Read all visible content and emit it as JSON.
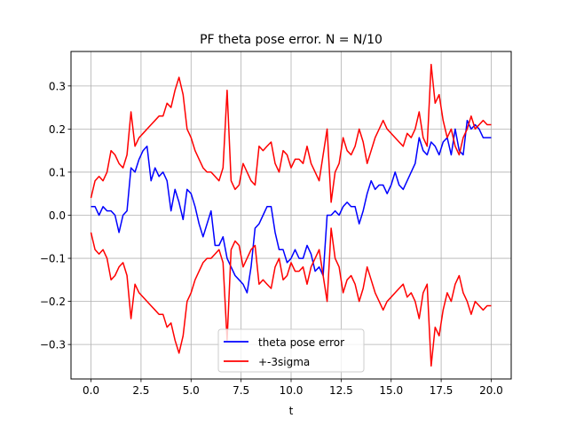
{
  "chart_data": {
    "type": "line",
    "title": "PF theta pose error. N = N/10",
    "xlabel": "t",
    "ylabel": "",
    "xlim": [
      -1.0,
      21.0
    ],
    "ylim": [
      -0.38,
      0.38
    ],
    "xticks": [
      0.0,
      2.5,
      5.0,
      7.5,
      10.0,
      12.5,
      15.0,
      17.5,
      20.0
    ],
    "xtick_labels": [
      "0.0",
      "2.5",
      "5.0",
      "7.5",
      "10.0",
      "12.5",
      "15.0",
      "17.5",
      "20.0"
    ],
    "yticks": [
      -0.3,
      -0.2,
      -0.1,
      0.0,
      0.1,
      0.2,
      0.3
    ],
    "ytick_labels": [
      "−0.3",
      "−0.2",
      "−0.1",
      "0.0",
      "0.1",
      "0.2",
      "0.3"
    ],
    "grid": true,
    "legend_position": "lower center",
    "series": [
      {
        "name": "theta pose error",
        "color": "#0000ff",
        "x": [
          0.0,
          0.2,
          0.4,
          0.6,
          0.8,
          1.0,
          1.2,
          1.4,
          1.6,
          1.8,
          2.0,
          2.2,
          2.4,
          2.6,
          2.8,
          3.0,
          3.2,
          3.4,
          3.6,
          3.8,
          4.0,
          4.2,
          4.4,
          4.6,
          4.8,
          5.0,
          5.2,
          5.4,
          5.6,
          5.8,
          6.0,
          6.2,
          6.4,
          6.6,
          6.8,
          7.0,
          7.2,
          7.4,
          7.6,
          7.8,
          8.0,
          8.2,
          8.4,
          8.6,
          8.8,
          9.0,
          9.2,
          9.4,
          9.6,
          9.8,
          10.0,
          10.2,
          10.4,
          10.6,
          10.8,
          11.0,
          11.2,
          11.4,
          11.6,
          11.8,
          12.0,
          12.2,
          12.4,
          12.6,
          12.8,
          13.0,
          13.2,
          13.4,
          13.6,
          13.8,
          14.0,
          14.2,
          14.4,
          14.6,
          14.8,
          15.0,
          15.2,
          15.4,
          15.6,
          15.8,
          16.0,
          16.2,
          16.4,
          16.6,
          16.8,
          17.0,
          17.2,
          17.4,
          17.6,
          17.8,
          18.0,
          18.2,
          18.4,
          18.6,
          18.8,
          19.0,
          19.2,
          19.4,
          19.6,
          19.8,
          20.0
        ],
        "y": [
          0.02,
          0.02,
          0.0,
          0.02,
          0.01,
          0.01,
          0.0,
          -0.04,
          0.0,
          0.01,
          0.11,
          0.1,
          0.13,
          0.15,
          0.16,
          0.08,
          0.11,
          0.09,
          0.1,
          0.08,
          0.01,
          0.06,
          0.03,
          -0.01,
          0.06,
          0.05,
          0.02,
          -0.02,
          -0.05,
          -0.02,
          0.01,
          -0.07,
          -0.07,
          -0.05,
          -0.1,
          -0.12,
          -0.14,
          -0.15,
          -0.16,
          -0.18,
          -0.12,
          -0.03,
          -0.02,
          0.0,
          0.02,
          0.02,
          -0.04,
          -0.08,
          -0.08,
          -0.11,
          -0.1,
          -0.08,
          -0.1,
          -0.1,
          -0.07,
          -0.09,
          -0.13,
          -0.12,
          -0.14,
          0.0,
          0.0,
          0.01,
          0.0,
          0.02,
          0.03,
          0.02,
          0.02,
          -0.02,
          0.01,
          0.05,
          0.08,
          0.06,
          0.07,
          0.07,
          0.05,
          0.07,
          0.1,
          0.07,
          0.06,
          0.08,
          0.1,
          0.12,
          0.18,
          0.15,
          0.14,
          0.17,
          0.16,
          0.14,
          0.17,
          0.18,
          0.14,
          0.2,
          0.15,
          0.14,
          0.22,
          0.2,
          0.21,
          0.2,
          0.18,
          0.18,
          0.18
        ]
      },
      {
        "name": "+-3sigma",
        "color": "#ff0000",
        "x": [
          0.0,
          0.2,
          0.4,
          0.6,
          0.8,
          1.0,
          1.2,
          1.4,
          1.6,
          1.8,
          2.0,
          2.2,
          2.4,
          2.6,
          2.8,
          3.0,
          3.2,
          3.4,
          3.6,
          3.8,
          4.0,
          4.2,
          4.4,
          4.6,
          4.8,
          5.0,
          5.2,
          5.4,
          5.6,
          5.8,
          6.0,
          6.2,
          6.4,
          6.6,
          6.8,
          7.0,
          7.2,
          7.4,
          7.6,
          7.8,
          8.0,
          8.2,
          8.4,
          8.6,
          8.8,
          9.0,
          9.2,
          9.4,
          9.6,
          9.8,
          10.0,
          10.2,
          10.4,
          10.6,
          10.8,
          11.0,
          11.2,
          11.4,
          11.6,
          11.8,
          12.0,
          12.2,
          12.4,
          12.6,
          12.8,
          13.0,
          13.2,
          13.4,
          13.6,
          13.8,
          14.0,
          14.2,
          14.4,
          14.6,
          14.8,
          15.0,
          15.2,
          15.4,
          15.6,
          15.8,
          16.0,
          16.2,
          16.4,
          16.6,
          16.8,
          17.0,
          17.2,
          17.4,
          17.6,
          17.8,
          18.0,
          18.2,
          18.4,
          18.6,
          18.8,
          19.0,
          19.2,
          19.4,
          19.6,
          19.8,
          20.0
        ],
        "y": [
          0.04,
          0.08,
          0.09,
          0.08,
          0.1,
          0.15,
          0.14,
          0.12,
          0.11,
          0.14,
          0.24,
          0.16,
          0.18,
          0.19,
          0.2,
          0.21,
          0.22,
          0.23,
          0.23,
          0.26,
          0.25,
          0.29,
          0.32,
          0.28,
          0.2,
          0.18,
          0.15,
          0.13,
          0.11,
          0.1,
          0.1,
          0.09,
          0.08,
          0.11,
          0.29,
          0.08,
          0.06,
          0.07,
          0.12,
          0.1,
          0.08,
          0.07,
          0.16,
          0.15,
          0.16,
          0.17,
          0.12,
          0.1,
          0.15,
          0.14,
          0.11,
          0.13,
          0.13,
          0.12,
          0.16,
          0.12,
          0.1,
          0.08,
          0.14,
          0.2,
          0.03,
          0.1,
          0.12,
          0.18,
          0.15,
          0.14,
          0.16,
          0.2,
          0.17,
          0.12,
          0.15,
          0.18,
          0.2,
          0.22,
          0.2,
          0.19,
          0.18,
          0.17,
          0.16,
          0.19,
          0.18,
          0.2,
          0.24,
          0.18,
          0.16,
          0.35,
          0.26,
          0.28,
          0.22,
          0.18,
          0.2,
          0.16,
          0.14,
          0.18,
          0.2,
          0.23,
          0.2,
          0.21,
          0.22,
          0.21,
          0.21
        ]
      },
      {
        "name": "",
        "color": "#ff0000",
        "x": [
          0.0,
          0.2,
          0.4,
          0.6,
          0.8,
          1.0,
          1.2,
          1.4,
          1.6,
          1.8,
          2.0,
          2.2,
          2.4,
          2.6,
          2.8,
          3.0,
          3.2,
          3.4,
          3.6,
          3.8,
          4.0,
          4.2,
          4.4,
          4.6,
          4.8,
          5.0,
          5.2,
          5.4,
          5.6,
          5.8,
          6.0,
          6.2,
          6.4,
          6.6,
          6.8,
          7.0,
          7.2,
          7.4,
          7.6,
          7.8,
          8.0,
          8.2,
          8.4,
          8.6,
          8.8,
          9.0,
          9.2,
          9.4,
          9.6,
          9.8,
          10.0,
          10.2,
          10.4,
          10.6,
          10.8,
          11.0,
          11.2,
          11.4,
          11.6,
          11.8,
          12.0,
          12.2,
          12.4,
          12.6,
          12.8,
          13.0,
          13.2,
          13.4,
          13.6,
          13.8,
          14.0,
          14.2,
          14.4,
          14.6,
          14.8,
          15.0,
          15.2,
          15.4,
          15.6,
          15.8,
          16.0,
          16.2,
          16.4,
          16.6,
          16.8,
          17.0,
          17.2,
          17.4,
          17.6,
          17.8,
          18.0,
          18.2,
          18.4,
          18.6,
          18.8,
          19.0,
          19.2,
          19.4,
          19.6,
          19.8,
          20.0
        ],
        "y": [
          -0.04,
          -0.08,
          -0.09,
          -0.08,
          -0.1,
          -0.15,
          -0.14,
          -0.12,
          -0.11,
          -0.14,
          -0.24,
          -0.16,
          -0.18,
          -0.19,
          -0.2,
          -0.21,
          -0.22,
          -0.23,
          -0.23,
          -0.26,
          -0.25,
          -0.29,
          -0.32,
          -0.28,
          -0.2,
          -0.18,
          -0.15,
          -0.13,
          -0.11,
          -0.1,
          -0.1,
          -0.09,
          -0.08,
          -0.11,
          -0.29,
          -0.08,
          -0.06,
          -0.07,
          -0.12,
          -0.1,
          -0.08,
          -0.07,
          -0.16,
          -0.15,
          -0.16,
          -0.17,
          -0.12,
          -0.1,
          -0.15,
          -0.14,
          -0.11,
          -0.13,
          -0.13,
          -0.12,
          -0.16,
          -0.12,
          -0.1,
          -0.08,
          -0.14,
          -0.2,
          -0.03,
          -0.1,
          -0.12,
          -0.18,
          -0.15,
          -0.14,
          -0.16,
          -0.2,
          -0.17,
          -0.12,
          -0.15,
          -0.18,
          -0.2,
          -0.22,
          -0.2,
          -0.19,
          -0.18,
          -0.17,
          -0.16,
          -0.19,
          -0.18,
          -0.2,
          -0.24,
          -0.18,
          -0.16,
          -0.35,
          -0.26,
          -0.28,
          -0.22,
          -0.18,
          -0.2,
          -0.16,
          -0.14,
          -0.18,
          -0.2,
          -0.23,
          -0.2,
          -0.21,
          -0.22,
          -0.21,
          -0.21
        ]
      }
    ],
    "legend": [
      {
        "label": "theta pose error",
        "color": "#0000ff"
      },
      {
        "label": "+-3sigma",
        "color": "#ff0000"
      }
    ]
  }
}
